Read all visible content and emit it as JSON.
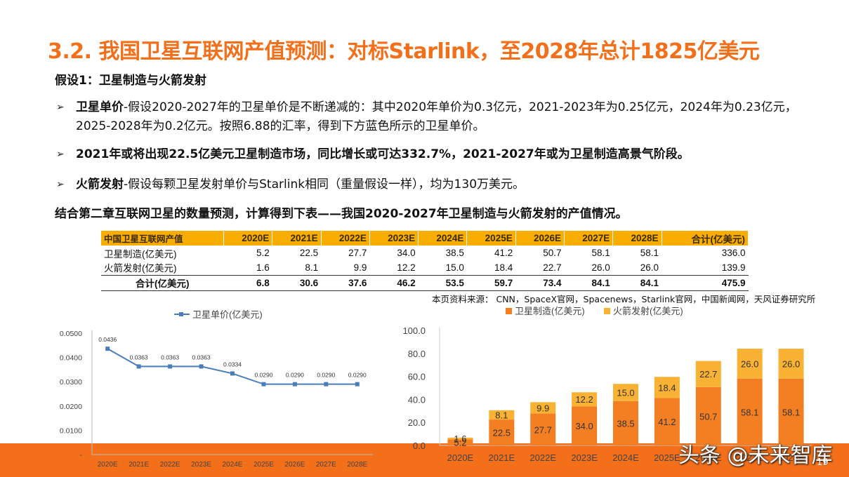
{
  "title": "3.2. 我国卫星互联网产值预测：对标Starlink，至2028年总计1825亿美元",
  "subtitle": "假设1：卫星制造与火箭发射",
  "bullets": [
    {
      "bold": "卫星单价",
      "text": "-假设2020-2027年的卫星单价是不断递减的：其中2020年单价为0.3亿元，2021-2023年为0.25亿元，2024年为0.23亿元，2025-2028年为0.2亿元。按照6.88的汇率，得到下方蓝色所示的卫星单价。"
    },
    {
      "bold": "2021年或将出现22.5亿美元卫星制造市场，同比增长或可达332.7%，2021-2027年或为卫星制造高景气阶段。",
      "text": ""
    },
    {
      "bold": "火箭发射",
      "text": "-假设每颗卫星发射单价与Starlink相同（重量假设一样），均为130万美元。"
    }
  ],
  "summary": "结合第二章互联网卫星的数量预测，计算得到下表——我国2020-2027年卫星制造与火箭发射的产值情况。",
  "table": {
    "header": [
      "中国卫星互联网产值",
      "2020E",
      "2021E",
      "2022E",
      "2023E",
      "2024E",
      "2025E",
      "2026E",
      "2027E",
      "2028E",
      "合计(亿美元)"
    ],
    "rows": [
      [
        "卫星制造(亿美元)",
        "5.2",
        "22.5",
        "27.7",
        "34.0",
        "38.5",
        "41.2",
        "50.7",
        "58.1",
        "58.1",
        "336.0"
      ],
      [
        "火箭发射(亿美元)",
        "1.6",
        "8.1",
        "9.9",
        "12.2",
        "15.0",
        "18.4",
        "22.7",
        "26.0",
        "26.0",
        "139.9"
      ]
    ],
    "total": [
      "合计(亿美元)",
      "6.8",
      "30.6",
      "37.6",
      "46.2",
      "53.5",
      "59.7",
      "73.4",
      "84.1",
      "84.1",
      "475.9"
    ]
  },
  "source_note": "本页资料来源：  CNN，SpaceX官网，Spacenews，Starlink官网，中国新闻网，天风证券研究所",
  "watermark": "头条 @未来智库",
  "page_number": "19",
  "chart_data": [
    {
      "type": "line",
      "legend": "卫星单价(亿美元)",
      "categories": [
        "2020E",
        "2021E",
        "2022E",
        "2023E",
        "2024E",
        "2025E",
        "2026E",
        "2027E",
        "2028E"
      ],
      "values": [
        0.0436,
        0.0363,
        0.0363,
        0.0363,
        0.0334,
        0.029,
        0.029,
        0.029,
        0.029
      ],
      "value_labels": [
        "0.0436",
        "0.0363",
        "0.0363",
        "0.0363",
        "0.0334",
        "0.0290",
        "0.0290",
        "0.0290",
        "0.0290"
      ],
      "ylim": [
        0,
        0.05
      ],
      "yticks": [
        "0.0500",
        "0.0400",
        "0.0300",
        "0.0200",
        "0.0100",
        "-"
      ],
      "color": "#4a7ebb"
    },
    {
      "type": "bar",
      "stacked": true,
      "categories": [
        "2020E",
        "2021E",
        "2022E",
        "2023E",
        "2024E",
        "2025E",
        "2026E",
        "2027E",
        "2028E"
      ],
      "series": [
        {
          "name": "卫星制造(亿美元)",
          "values": [
            5.2,
            22.5,
            27.7,
            34.0,
            38.5,
            41.2,
            50.7,
            58.1,
            58.1
          ],
          "color": "#f37f22"
        },
        {
          "name": "火箭发射(亿美元)",
          "values": [
            1.6,
            8.1,
            9.9,
            12.2,
            15.0,
            18.4,
            22.7,
            26.0,
            26.0
          ],
          "color": "#f9b233"
        }
      ],
      "ylim": [
        0,
        100
      ],
      "yticks": [
        "100.0",
        "80.0",
        "60.0",
        "40.0",
        "20.0",
        "0.0"
      ]
    }
  ]
}
